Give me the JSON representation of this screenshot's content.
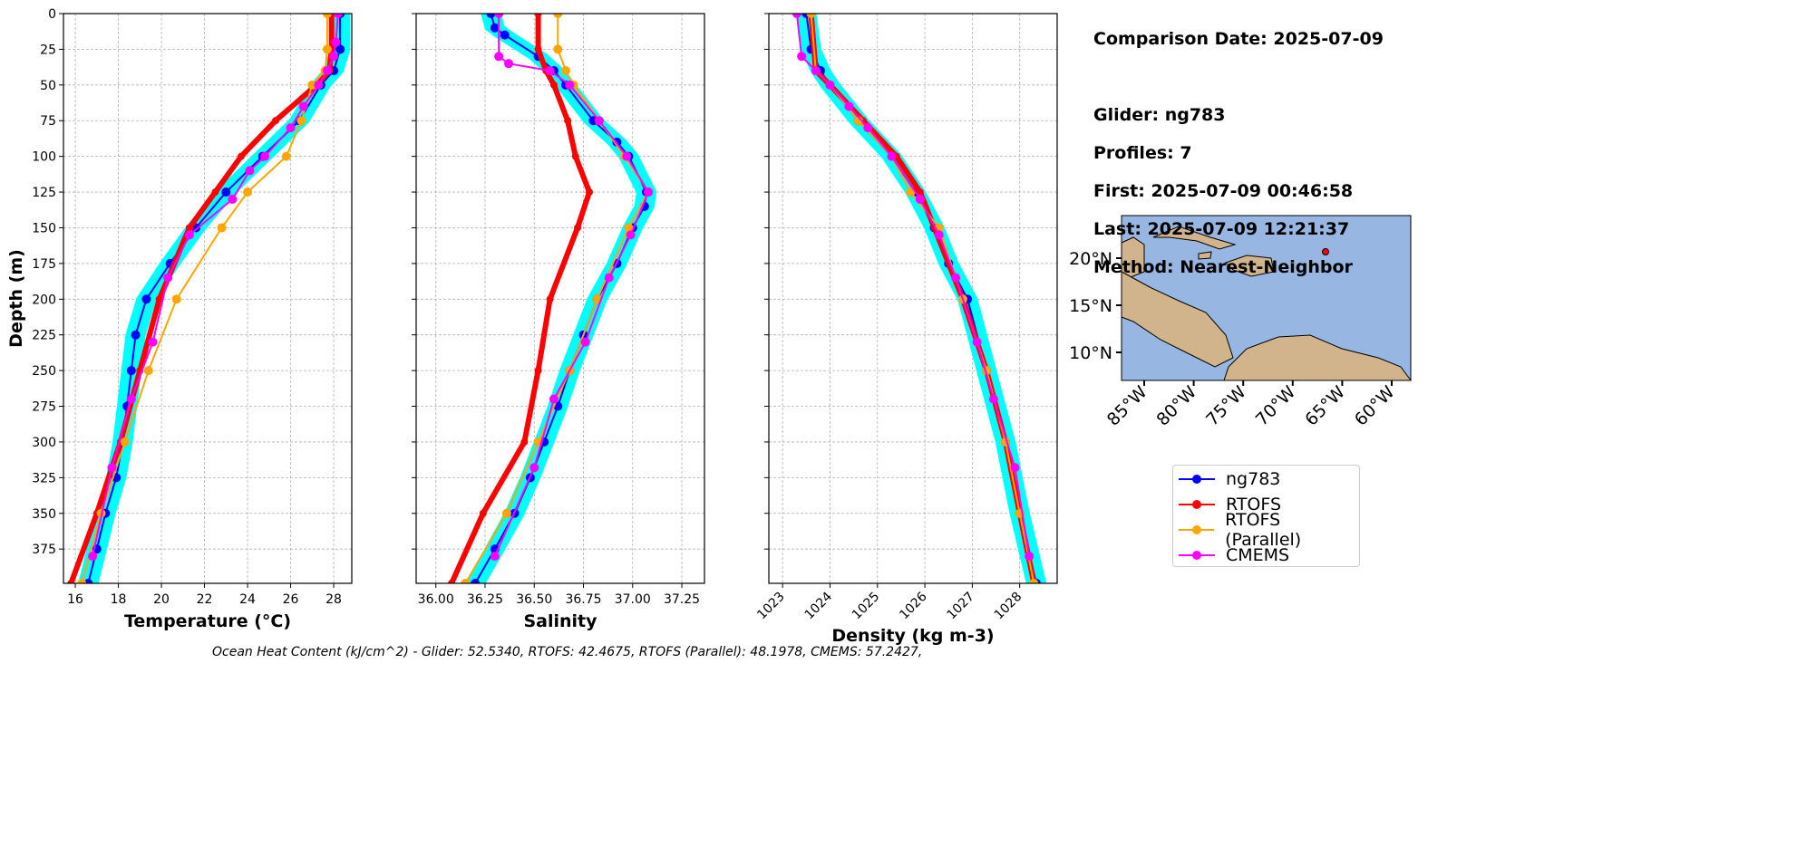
{
  "info": {
    "comparison": "Comparison Date: 2025-07-09",
    "glider": "Glider: ng783",
    "profiles": "Profiles: 7",
    "first": "First: 2025-07-09 00:46:58",
    "last": "Last: 2025-07-09 12:21:37",
    "method": "Method: Nearest-Neighbor"
  },
  "footer": "Ocean Heat Content (kJ/cm^2) - Glider: 52.5340,  RTOFS: 42.4675,  RTOFS (Parallel): 48.1978,  CMEMS: 57.2427,",
  "legend": [
    {
      "name": "ng783",
      "color": "#0000ff"
    },
    {
      "name": "RTOFS",
      "color": "#ff0000"
    },
    {
      "name": "RTOFS (Parallel)",
      "color": "#ffa500"
    },
    {
      "name": "CMEMS",
      "color": "#ff00ff"
    }
  ],
  "map": {
    "lat_ticks": [
      "20°N",
      "15°N",
      "10°N"
    ],
    "lon_ticks": [
      "85°W",
      "80°W",
      "75°W",
      "70°W",
      "65°W",
      "60°W"
    ],
    "ocean_color": "#97b6e1",
    "land_color": "#d2b48c",
    "marker_color": "#ff0000"
  },
  "chart_data": [
    {
      "type": "line",
      "xlabel": "Temperature (°C)",
      "ylabel": "Depth (m)",
      "xlim": [
        15.45,
        28.84
      ],
      "ylim": [
        399,
        0
      ],
      "grid": true,
      "xticks": [
        "16",
        "18",
        "20",
        "22",
        "24",
        "26",
        "28"
      ],
      "yticks": [
        "0",
        "25",
        "50",
        "75",
        "100",
        "125",
        "150",
        "175",
        "200",
        "225",
        "250",
        "275",
        "300",
        "325",
        "350",
        "375"
      ],
      "series": [
        {
          "name": "ng783",
          "depth": [
            0,
            25,
            40,
            50,
            75,
            100,
            125,
            150,
            175,
            200,
            225,
            250,
            275,
            300,
            325,
            350,
            375,
            399
          ],
          "values": [
            28.3,
            28.3,
            28.0,
            27.4,
            26.4,
            24.7,
            23.0,
            21.6,
            20.4,
            19.3,
            18.8,
            18.6,
            18.4,
            18.2,
            17.9,
            17.4,
            17.0,
            16.6
          ]
        },
        {
          "name": "RTOFS",
          "depth": [
            0,
            25,
            40,
            50,
            75,
            100,
            125,
            150,
            200,
            250,
            300,
            350,
            399
          ],
          "values": [
            27.9,
            27.9,
            27.8,
            27.2,
            25.3,
            23.7,
            22.5,
            21.3,
            19.9,
            19.0,
            18.1,
            17.0,
            15.8
          ]
        },
        {
          "name": "RTOFS (Parallel)",
          "depth": [
            0,
            25,
            40,
            50,
            75,
            100,
            125,
            150,
            200,
            250,
            300,
            350,
            399
          ],
          "values": [
            27.7,
            27.7,
            27.6,
            27.0,
            26.5,
            25.8,
            24.0,
            22.8,
            20.7,
            19.4,
            18.3,
            17.2,
            16.3
          ]
        },
        {
          "name": "CMEMS",
          "depth": [
            0,
            20,
            30,
            40,
            50,
            65,
            80,
            100,
            110,
            130,
            155,
            185,
            230,
            270,
            318,
            380
          ],
          "values": [
            28.2,
            28.1,
            28.0,
            27.7,
            27.3,
            26.6,
            26.0,
            24.8,
            24.1,
            23.3,
            21.3,
            20.3,
            19.6,
            18.6,
            17.7,
            16.8
          ]
        }
      ]
    },
    {
      "type": "line",
      "xlabel": "Salinity",
      "xlim": [
        35.9,
        37.365
      ],
      "ylim": [
        399,
        0
      ],
      "grid": true,
      "xticks": [
        "36.00",
        "36.25",
        "36.50",
        "36.75",
        "37.00",
        "37.25"
      ],
      "series": [
        {
          "name": "ng783",
          "depth": [
            0,
            10,
            15,
            30,
            40,
            50,
            75,
            90,
            100,
            125,
            135,
            150,
            175,
            200,
            225,
            250,
            275,
            300,
            325,
            350,
            375,
            399
          ],
          "values": [
            36.28,
            36.3,
            36.35,
            36.52,
            36.6,
            36.66,
            36.8,
            36.92,
            36.98,
            37.07,
            37.06,
            37.0,
            36.92,
            36.82,
            36.75,
            36.68,
            36.62,
            36.55,
            36.48,
            36.4,
            36.3,
            36.2
          ]
        },
        {
          "name": "RTOFS",
          "depth": [
            0,
            25,
            40,
            50,
            75,
            100,
            125,
            150,
            200,
            250,
            300,
            350,
            399
          ],
          "values": [
            36.52,
            36.52,
            36.56,
            36.6,
            36.67,
            36.71,
            36.78,
            36.72,
            36.58,
            36.52,
            36.45,
            36.24,
            36.08
          ]
        },
        {
          "name": "RTOFS (Parallel)",
          "depth": [
            0,
            25,
            40,
            50,
            75,
            100,
            125,
            150,
            200,
            250,
            300,
            350,
            399
          ],
          "values": [
            36.62,
            36.62,
            36.66,
            36.7,
            36.83,
            36.96,
            37.08,
            36.98,
            36.82,
            36.68,
            36.52,
            36.36,
            36.15
          ]
        },
        {
          "name": "CMEMS",
          "depth": [
            0,
            30,
            35,
            40,
            50,
            75,
            100,
            125,
            155,
            185,
            230,
            270,
            318,
            380
          ],
          "values": [
            36.32,
            36.32,
            36.37,
            36.58,
            36.68,
            36.83,
            36.97,
            37.08,
            36.99,
            36.88,
            36.76,
            36.6,
            36.5,
            36.3
          ]
        }
      ]
    },
    {
      "type": "line",
      "xlabel": "Density (kg m-3)",
      "xlim": [
        1022.71,
        1028.79
      ],
      "ylim": [
        399,
        0
      ],
      "grid": true,
      "xticks": [
        "1023",
        "1024",
        "1025",
        "1026",
        "1027",
        "1028"
      ],
      "series": [
        {
          "name": "ng783",
          "depth": [
            0,
            25,
            40,
            50,
            75,
            100,
            125,
            150,
            175,
            200,
            250,
            300,
            350,
            399
          ],
          "values": [
            1023.5,
            1023.6,
            1023.8,
            1024.0,
            1024.6,
            1025.3,
            1025.8,
            1026.2,
            1026.5,
            1026.9,
            1027.3,
            1027.7,
            1028.0,
            1028.35
          ]
        },
        {
          "name": "RTOFS",
          "depth": [
            0,
            40,
            50,
            75,
            100,
            125,
            150,
            200,
            250,
            300,
            350,
            399
          ],
          "values": [
            1023.6,
            1023.7,
            1024.0,
            1024.7,
            1025.4,
            1025.9,
            1026.2,
            1026.8,
            1027.3,
            1027.7,
            1028.0,
            1028.3
          ]
        },
        {
          "name": "RTOFS (Parallel)",
          "depth": [
            0,
            40,
            50,
            75,
            100,
            125,
            150,
            200,
            250,
            300,
            350,
            399
          ],
          "values": [
            1023.6,
            1023.7,
            1024.0,
            1024.6,
            1025.3,
            1025.7,
            1026.3,
            1026.8,
            1027.3,
            1027.7,
            1028.0,
            1028.3
          ]
        },
        {
          "name": "CMEMS",
          "depth": [
            0,
            30,
            40,
            50,
            65,
            80,
            100,
            130,
            155,
            185,
            230,
            270,
            318,
            380
          ],
          "values": [
            1023.3,
            1023.4,
            1023.7,
            1024.0,
            1024.4,
            1024.8,
            1025.3,
            1025.9,
            1026.3,
            1026.65,
            1027.1,
            1027.45,
            1027.9,
            1028.2
          ]
        }
      ]
    }
  ],
  "glider_band_color": "#00ffff"
}
